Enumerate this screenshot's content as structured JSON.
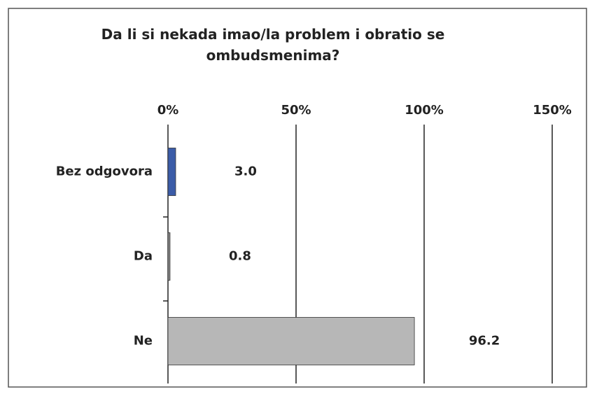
{
  "chart_data": {
    "type": "hbar",
    "title": "Da li si nekada imao/la problem i obratio se ombudsmenima?",
    "categories": [
      "Bez odgovora",
      "Da",
      "Ne"
    ],
    "values": [
      3.0,
      0.8,
      96.2
    ],
    "value_labels": [
      "3.0",
      "0.8",
      "96.2"
    ],
    "colors": [
      "#3b5ca8",
      "#8a8a8a",
      "#b7b7b7"
    ],
    "xlim": [
      0,
      150
    ],
    "xticks": [
      {
        "value": 0,
        "label": "0%"
      },
      {
        "value": 50,
        "label": "50%"
      },
      {
        "value": 100,
        "label": "100%"
      },
      {
        "value": 150,
        "label": "150%"
      }
    ],
    "grid": true
  }
}
